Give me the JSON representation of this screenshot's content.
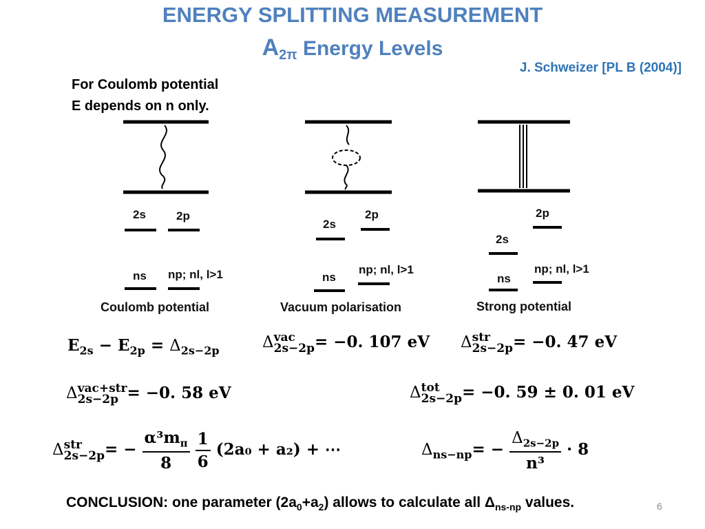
{
  "title": "ENERGY SPLITTING MEASUREMENT",
  "subtitle": {
    "main": "A",
    "sub": "2π",
    "rest": " Energy Levels"
  },
  "reference": "J. Schweizer [PL B (2004)]",
  "intro": {
    "line1": "For Coulomb potential",
    "line2": "E depends on n only."
  },
  "diagrams": [
    {
      "caption": "Coulomb potential",
      "levels": [
        "2s",
        "2p",
        "ns",
        "np; nl, l>1"
      ]
    },
    {
      "caption": "Vacuum polarisation",
      "levels": [
        "2s",
        "2p",
        "ns",
        "np; nl, l>1"
      ]
    },
    {
      "caption": "Strong potential",
      "levels": [
        "2p",
        "2s",
        "ns",
        "np; nl, l>1"
      ]
    }
  ],
  "equations": {
    "eq1": {
      "lhs": "E",
      "lhs_sub1": "2s",
      "mid": "E",
      "lhs_sub2": "2p",
      "delta": "Δ",
      "sub": "2s−2p"
    },
    "eq2": {
      "delta": "Δ",
      "sup": "vac",
      "sub": "2s−2p",
      "value": "−0. 107 eV"
    },
    "eq3": {
      "delta": "Δ",
      "sup": "str",
      "sub": "2s−2p",
      "value": "−0. 47 eV"
    },
    "eq4": {
      "delta": "Δ",
      "sup": "vac+str",
      "sub": "2s−2p",
      "value": "−0. 58 eV"
    },
    "eq5": {
      "delta": "Δ",
      "sup": "tot",
      "sub": "2s−2p",
      "value": "−0. 59 ± 0. 01 eV"
    },
    "eq6": {
      "delta": "Δ",
      "sup": "str",
      "sub": "2s−2p",
      "num": "α³m",
      "num_sub": "π",
      "den": "8",
      "num2": "1",
      "den2": "6",
      "tail": "(2a₀ + a₂) + ⋯"
    },
    "eq7": {
      "delta": "Δ",
      "sub": "ns−np",
      "num": "Δ",
      "num_sub": "2s−2p",
      "den": "n³",
      "tail": "· 8"
    }
  },
  "conclusion": {
    "pre": "CONCLUSION: one parameter (2a",
    "s0": "0",
    "mid": "+a",
    "s2": "2",
    "post": ") allows to calculate all Δ",
    "s3": "ns-np",
    "end": " values."
  },
  "page_number": "6",
  "colors": {
    "title": "#4f81bd",
    "reference": "#2e74b5"
  }
}
